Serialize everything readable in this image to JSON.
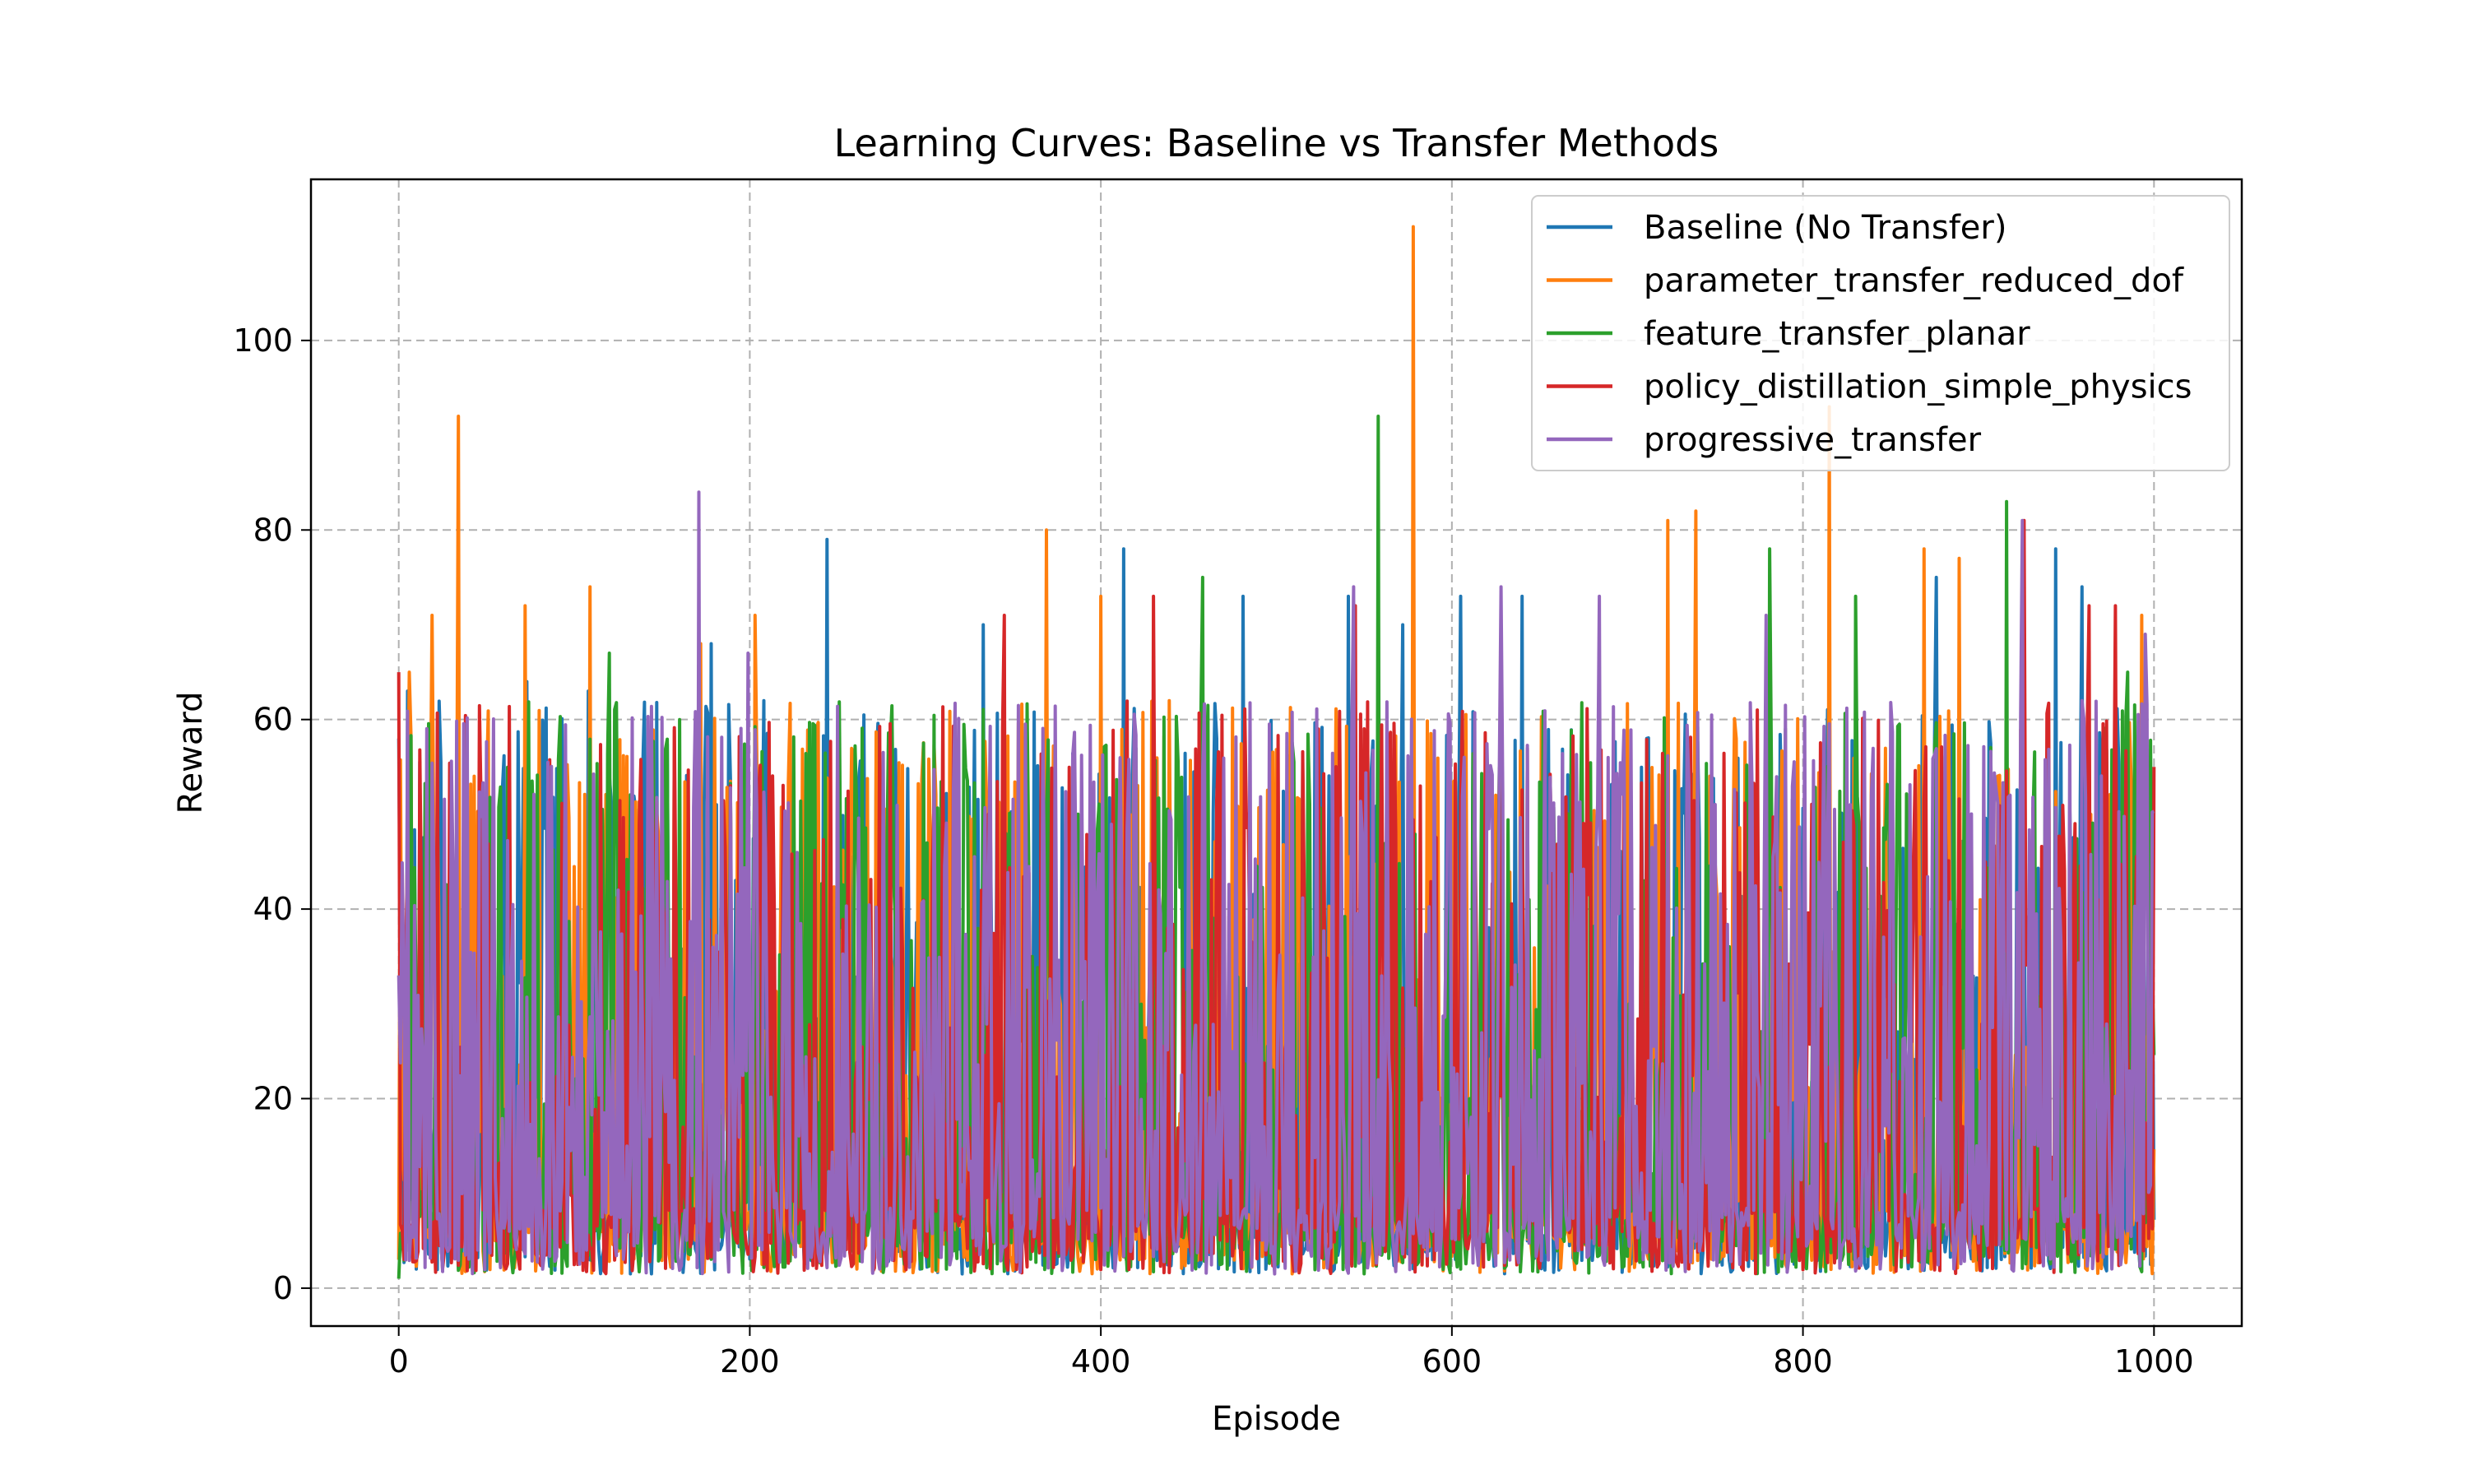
{
  "chart_data": {
    "type": "line",
    "title": "Learning Curves: Baseline vs Transfer Methods",
    "xlabel": "Episode",
    "ylabel": "Reward",
    "xlim": [
      -50,
      1050
    ],
    "ylim": [
      -4,
      117
    ],
    "xticks": [
      0,
      200,
      400,
      600,
      800,
      1000
    ],
    "yticks": [
      0,
      20,
      40,
      60,
      80,
      100
    ],
    "grid": true,
    "grid_style": "dashed",
    "legend_position": "top-right",
    "n_episodes": 1001,
    "series": [
      {
        "name": "Baseline (No Transfer)",
        "color": "#1f77b4",
        "keypoints": [
          [
            0,
            58
          ],
          [
            5,
            63
          ],
          [
            73,
            64
          ],
          [
            108,
            63
          ],
          [
            178,
            68
          ],
          [
            244,
            79
          ],
          [
            333,
            70
          ],
          [
            413,
            78
          ],
          [
            481,
            73
          ],
          [
            541,
            73
          ],
          [
            572,
            70
          ],
          [
            605,
            73
          ],
          [
            640,
            73
          ],
          [
            876,
            75
          ],
          [
            944,
            78
          ],
          [
            959,
            74
          ]
        ]
      },
      {
        "name": "parameter_transfer_reduced_dof",
        "color": "#ff7f0e",
        "keypoints": [
          [
            0,
            3
          ],
          [
            6,
            65
          ],
          [
            19,
            71
          ],
          [
            34,
            92
          ],
          [
            72,
            72
          ],
          [
            109,
            74
          ],
          [
            172,
            68
          ],
          [
            203,
            71
          ],
          [
            369,
            80
          ],
          [
            400,
            73
          ],
          [
            578,
            112
          ],
          [
            723,
            81
          ],
          [
            739,
            82
          ],
          [
            815,
            93
          ],
          [
            869,
            78
          ],
          [
            889,
            77
          ],
          [
            993,
            71
          ]
        ]
      },
      {
        "name": "feature_transfer_planar",
        "color": "#2ca02c",
        "keypoints": [
          [
            0,
            1
          ],
          [
            120,
            67
          ],
          [
            458,
            75
          ],
          [
            558,
            92
          ],
          [
            781,
            78
          ],
          [
            830,
            73
          ],
          [
            916,
            83
          ],
          [
            985,
            65
          ]
        ]
      },
      {
        "name": "policy_distillation_simple_physics",
        "color": "#d62728",
        "keypoints": [
          [
            0,
            65
          ],
          [
            345,
            71
          ],
          [
            430,
            73
          ],
          [
            545,
            72
          ],
          [
            926,
            81
          ],
          [
            963,
            72
          ],
          [
            978,
            72
          ],
          [
            1000,
            55
          ]
        ]
      },
      {
        "name": "progressive_transfer",
        "color": "#9467bd",
        "keypoints": [
          [
            0,
            33
          ],
          [
            171,
            84
          ],
          [
            199,
            67
          ],
          [
            544,
            74
          ],
          [
            628,
            74
          ],
          [
            684,
            73
          ],
          [
            779,
            71
          ],
          [
            925,
            81
          ],
          [
            995,
            69
          ]
        ]
      }
    ]
  }
}
